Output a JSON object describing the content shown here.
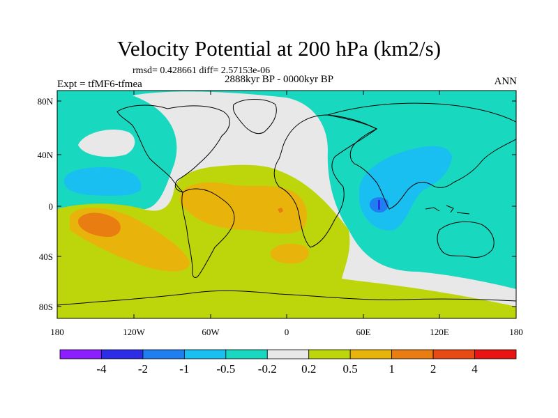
{
  "title": "Velocity Potential at 200 hPa (km2/s)",
  "stats": "rmsd= 0.428661 diff= 2.57153e-06",
  "left_label": "Expt = tfMF6-tfmea",
  "center_label": "2888kyr BP - 0000kyr BP",
  "right_label": "ANN",
  "y_ticks": [
    "80N",
    "40N",
    "0",
    "40S",
    "80S"
  ],
  "x_ticks": [
    "180",
    "120W",
    "60W",
    "0",
    "60E",
    "120E",
    "180"
  ],
  "colorbar": {
    "colors": [
      "#8c1eff",
      "#2d2de8",
      "#1f7ef0",
      "#19bff0",
      "#19d8c0",
      "#e8e8e8",
      "#bcd60b",
      "#e8b40b",
      "#ea7d12",
      "#e84a14",
      "#e81414"
    ],
    "labels": [
      "-4",
      "-2",
      "-1",
      "-0.5",
      "-0.2",
      "0.2",
      "0.5",
      "1",
      "2",
      "4"
    ]
  },
  "map": {
    "extent_lon": [
      -180,
      180
    ],
    "extent_lat": [
      -90,
      90
    ],
    "background": "#19d8c0"
  }
}
